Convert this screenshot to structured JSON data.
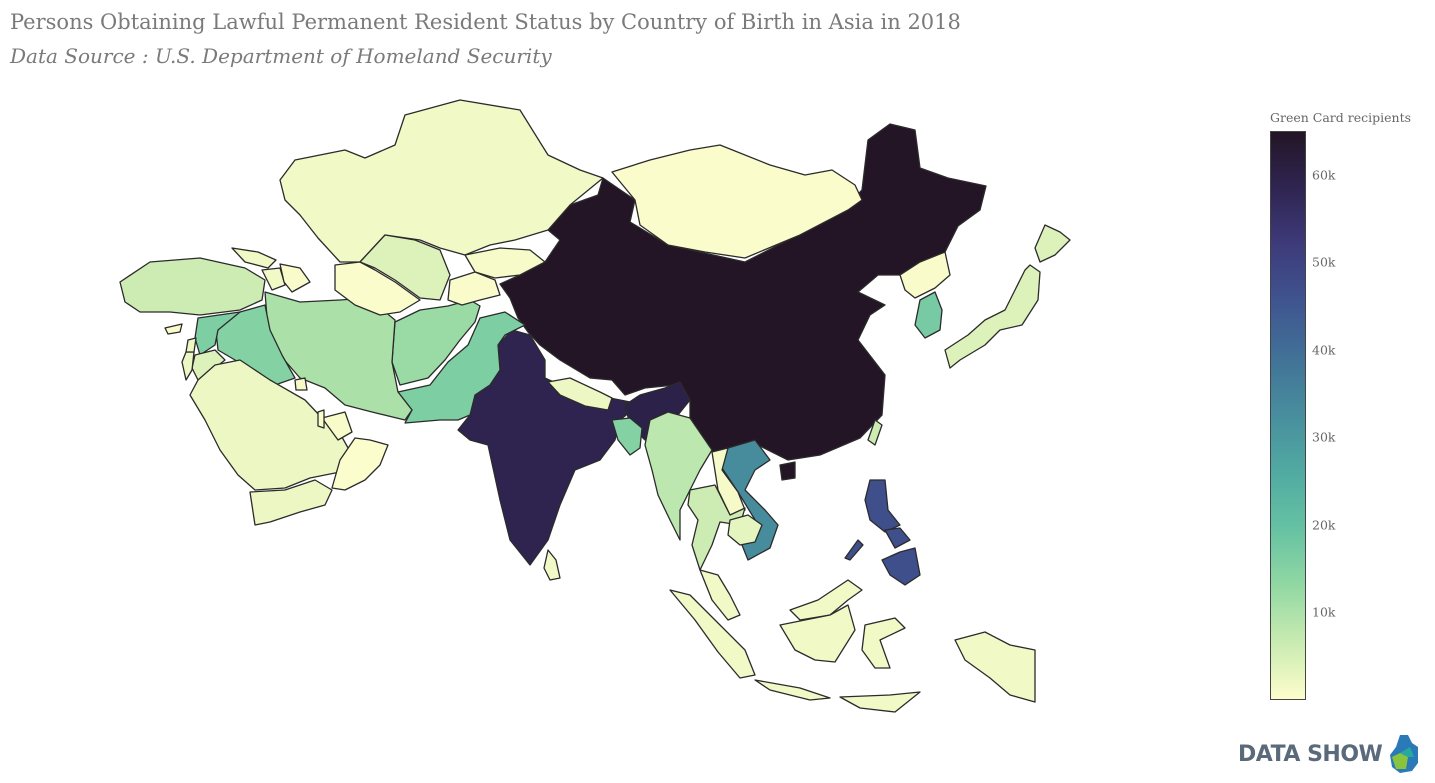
{
  "header": {
    "title": "Persons Obtaining Lawful Permanent Resident Status by Country of Birth in Asia in 2018",
    "subtitle": "Data Source : U.S. Department of Homeland Security"
  },
  "colorbar": {
    "title": "Green Card recipients",
    "ticks": [
      "10k",
      "20k",
      "30k",
      "40k",
      "50k",
      "60k"
    ],
    "tick_values": [
      10000,
      20000,
      30000,
      40000,
      50000,
      60000
    ],
    "range": [
      0,
      65000
    ],
    "colors": [
      "#fdfdcc",
      "#c9ebb1",
      "#91d8a3",
      "#66c2a3",
      "#51aaa1",
      "#488e9e",
      "#417297",
      "#3f5590",
      "#3e3b7a",
      "#2f2552",
      "#231526"
    ]
  },
  "logo": {
    "text": "DATA SHOW",
    "icon": "data-show-logo-icon"
  },
  "map_data": {
    "type": "choropleth",
    "region": "Asia",
    "countries": [
      {
        "name": "China",
        "value": 65000
      },
      {
        "name": "India",
        "value": 59000
      },
      {
        "name": "Nepal",
        "value": 2000
      },
      {
        "name": "Philippines",
        "value": 47000
      },
      {
        "name": "Vietnam",
        "value": 33000
      },
      {
        "name": "South Korea",
        "value": 17000
      },
      {
        "name": "North Korea",
        "value": 500
      },
      {
        "name": "Japan",
        "value": 4000
      },
      {
        "name": "Taiwan",
        "value": 6000
      },
      {
        "name": "Mongolia",
        "value": 200
      },
      {
        "name": "Kazakhstan",
        "value": 1500
      },
      {
        "name": "Uzbekistan",
        "value": 4000
      },
      {
        "name": "Turkmenistan",
        "value": 200
      },
      {
        "name": "Kyrgyzstan",
        "value": 800
      },
      {
        "name": "Tajikistan",
        "value": 500
      },
      {
        "name": "Afghanistan",
        "value": 12000
      },
      {
        "name": "Pakistan",
        "value": 16000
      },
      {
        "name": "Bangladesh",
        "value": 15000
      },
      {
        "name": "Bhutan",
        "value": 60000
      },
      {
        "name": "Sri Lanka",
        "value": 1500
      },
      {
        "name": "Myanmar",
        "value": 8000
      },
      {
        "name": "Thailand",
        "value": 6000
      },
      {
        "name": "Laos",
        "value": 1000
      },
      {
        "name": "Cambodia",
        "value": 3000
      },
      {
        "name": "Malaysia",
        "value": 1500
      },
      {
        "name": "Indonesia",
        "value": 1500
      },
      {
        "name": "Iran",
        "value": 10000
      },
      {
        "name": "Iraq",
        "value": 15000
      },
      {
        "name": "Syria",
        "value": 16000
      },
      {
        "name": "Jordan",
        "value": 4000
      },
      {
        "name": "Israel",
        "value": 2000
      },
      {
        "name": "Lebanon",
        "value": 1800
      },
      {
        "name": "Turkey",
        "value": 6000
      },
      {
        "name": "Georgia",
        "value": 1500
      },
      {
        "name": "Armenia",
        "value": 1500
      },
      {
        "name": "Azerbaijan",
        "value": 500
      },
      {
        "name": "Saudi Arabia",
        "value": 2000
      },
      {
        "name": "Yemen",
        "value": 2000
      },
      {
        "name": "Oman",
        "value": 100
      },
      {
        "name": "United Arab Emirates",
        "value": 600
      },
      {
        "name": "Kuwait",
        "value": 1000
      },
      {
        "name": "Qatar",
        "value": 300
      },
      {
        "name": "Cyprus",
        "value": 200
      }
    ]
  }
}
